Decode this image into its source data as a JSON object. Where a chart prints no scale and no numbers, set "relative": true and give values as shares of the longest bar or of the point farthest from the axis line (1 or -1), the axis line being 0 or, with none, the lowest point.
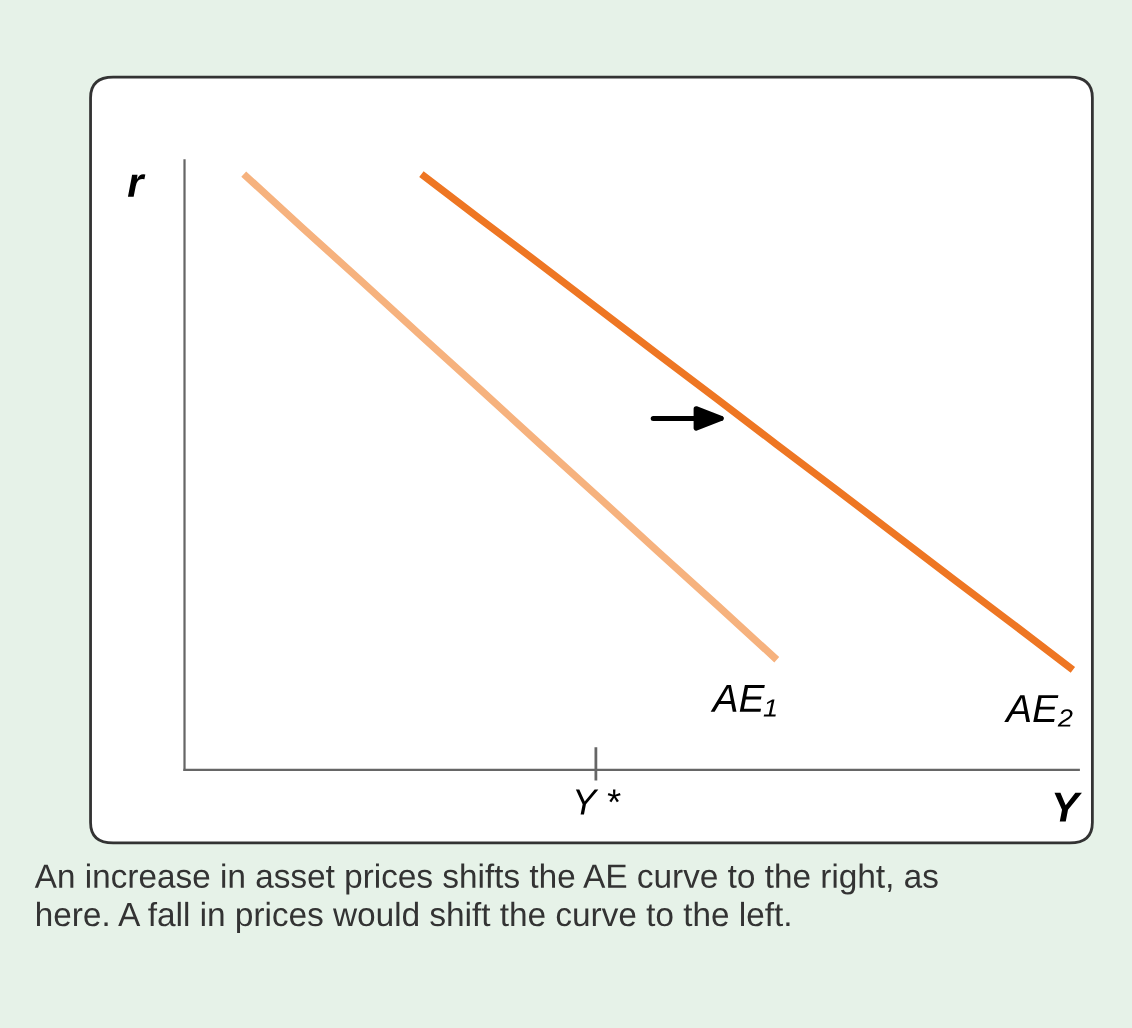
{
  "chart_data": {
    "type": "line",
    "relative": true,
    "xlabel": "Y",
    "ylabel": "r",
    "categories": [
      null,
      null,
      null,
      null,
      null,
      null,
      null,
      null,
      null,
      null,
      null,
      null,
      null,
      null,
      null,
      null
    ],
    "series": [
      {
        "name": "AE₁",
        "color": "#f6b27e",
        "values": [
          null,
          1,
          0.909,
          0.819,
          0.728,
          0.638,
          0.547,
          0.457,
          0.366,
          0.276,
          0.185,
          null,
          null,
          null,
          null,
          null
        ]
      },
      {
        "name": "AE₂",
        "color": "#ee7623",
        "values": [
          null,
          null,
          null,
          null,
          1,
          0.924,
          0.849,
          0.773,
          0.697,
          0.622,
          0.546,
          0.471,
          0.395,
          0.319,
          0.244,
          0.168
        ]
      }
    ],
    "annotations": [
      "Y *",
      "An increase in asset prices shifts the AE curve to the right, as here. A fall in prices would shift the curve to the left."
    ]
  }
}
